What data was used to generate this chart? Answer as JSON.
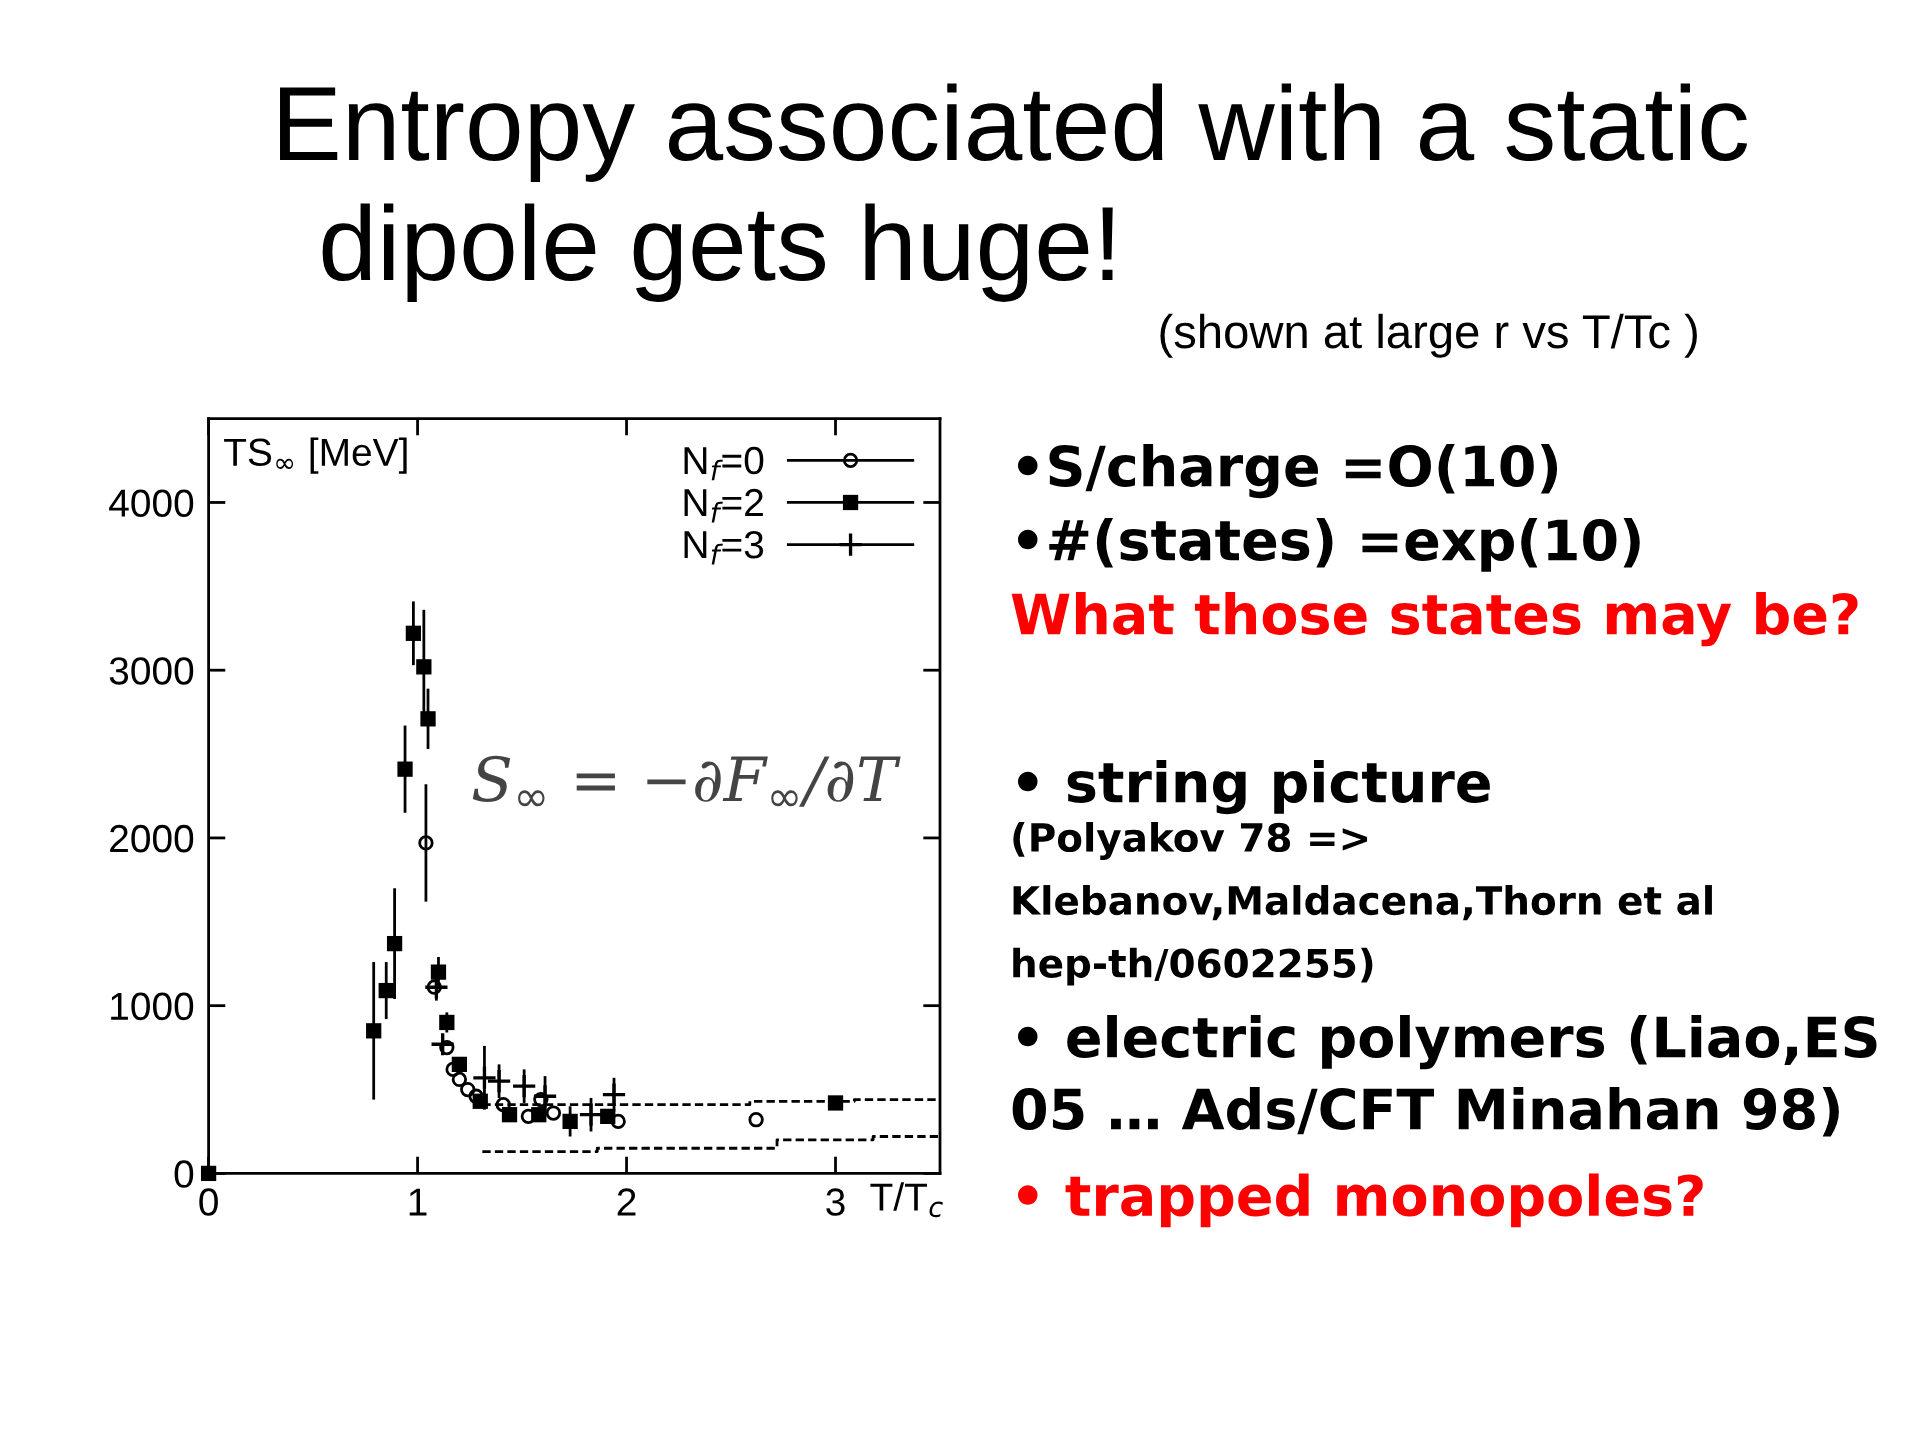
{
  "chart_data": {
    "type": "scatter",
    "title": "Entropy associated with a static dipole gets huge!",
    "subtitle": "(shown at large r vs T/Tc )",
    "xlabel": "T/T$_{c}$",
    "ylabel": "TS$_{∞}$ [MeV]",
    "xlim": [
      0,
      3.5
    ],
    "ylim": [
      0,
      4500
    ],
    "xticks": [
      0,
      1,
      2,
      3
    ],
    "yticks": [
      0,
      1000,
      2000,
      3000,
      4000
    ],
    "legend": "top right",
    "series": [
      {
        "name": "N$_{f}$=0",
        "marker": "circle",
        "color": "#000000",
        "x": [
          1.04,
          1.08,
          1.14,
          1.17,
          1.2,
          1.24,
          1.28,
          1.41,
          1.53,
          1.59,
          1.65,
          1.96,
          2.62
        ],
        "values": [
          1970,
          1110,
          750,
          620,
          560,
          500,
          460,
          410,
          340,
          440,
          360,
          310,
          320
        ],
        "errors": [
          350,
          null,
          null,
          null,
          null,
          null,
          null,
          null,
          null,
          null,
          null,
          null,
          null
        ]
      },
      {
        "name": "N$_{f}$=2",
        "marker": "square",
        "color": "#000000",
        "x": [
          0,
          0.79,
          0.85,
          0.89,
          0.94,
          0.98,
          1.03,
          1.05,
          1.1,
          1.14,
          1.2,
          1.3,
          1.44,
          1.58,
          1.73,
          1.91,
          3.0
        ],
        "values": [
          0,
          850,
          1090,
          1370,
          2410,
          3220,
          3020,
          2710,
          1200,
          900,
          650,
          430,
          350,
          350,
          310,
          340,
          420
        ],
        "errors": [
          null,
          410,
          170,
          330,
          260,
          190,
          340,
          180,
          90,
          60,
          null,
          null,
          null,
          null,
          90,
          null,
          null
        ]
      },
      {
        "name": "N$_{f}$=3",
        "marker": "cross",
        "color": "#000000",
        "x": [
          1.09,
          1.12,
          1.32,
          1.39,
          1.51,
          1.61,
          1.83,
          1.94
        ],
        "values": [
          1110,
          770,
          570,
          550,
          520,
          460,
          350,
          470
        ],
        "errors": [
          80,
          60,
          190,
          100,
          100,
          120,
          100,
          100
        ]
      },
      {
        "type": "step",
        "color": "#000000",
        "line_style": "dashed",
        "x": [
          1.31,
          2.59,
          3.09,
          3.5
        ],
        "values": [
          410,
          430,
          440,
          440
        ]
      },
      {
        "type": "step",
        "color": "#000000",
        "line_style": "dashed",
        "x": [
          1.31,
          1.86,
          2.72,
          3.18,
          3.5
        ],
        "values": [
          130,
          150,
          200,
          220,
          220
        ]
      }
    ],
    "annotations": [
      "S$_{∞}$ = −∂F$_{∞}$/∂T",
      "•S/charge =O(10)",
      "•#(states) =exp(10)",
      "What those states may be?",
      "• string picture",
      "(Polyakov 78 => Klebanov,Maldacena,Thorn et al hep-th/0602255)",
      "• electric polymers (Liao,ES 05 … Ads/CFT Minahan 98)",
      "• trapped monopoles?"
    ]
  }
}
